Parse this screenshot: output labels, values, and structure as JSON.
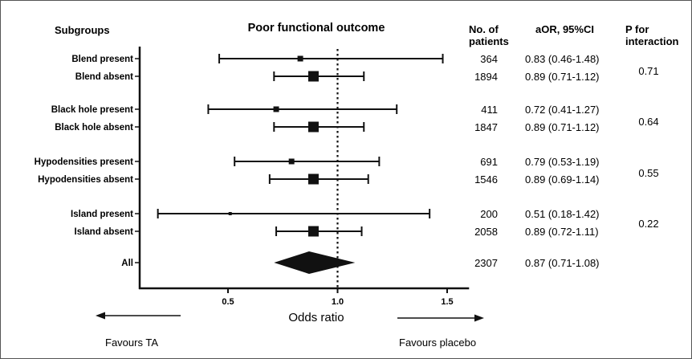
{
  "headers": {
    "subgroups": "Subgroups",
    "title": "Poor functional outcome",
    "patients": [
      "No. of",
      "patients"
    ],
    "aor": "aOR, 95%CI",
    "pint": [
      "P for",
      "interaction"
    ]
  },
  "footer": {
    "xlabel": "Odds ratio",
    "favours_left": "Favours TA",
    "favours_right": "Favours placebo"
  },
  "colors": {
    "ink": "#111111",
    "frame": "#555555"
  },
  "chart_data": {
    "type": "forest",
    "xlabel": "Odds ratio",
    "xlim": [
      0.15,
      1.6
    ],
    "ticks": [
      0.5,
      1.0,
      1.5
    ],
    "tick_labels": [
      "0.5",
      "1.0",
      "1.5"
    ],
    "reference_line": 1.0,
    "rows": [
      {
        "label": "Blend present",
        "n": "364",
        "aor_text": "0.83 (0.46-1.48)",
        "or": 0.83,
        "lo": 0.46,
        "hi": 1.48,
        "marker": "square-small"
      },
      {
        "label": "Blend absent",
        "n": "1894",
        "aor_text": "0.89 (0.71-1.12)",
        "or": 0.89,
        "lo": 0.71,
        "hi": 1.12,
        "marker": "square-large"
      },
      {
        "label": "Black hole present",
        "n": "411",
        "aor_text": "0.72 (0.41-1.27)",
        "or": 0.72,
        "lo": 0.41,
        "hi": 1.27,
        "marker": "square-small"
      },
      {
        "label": "Black hole absent",
        "n": "1847",
        "aor_text": "0.89 (0.71-1.12)",
        "or": 0.89,
        "lo": 0.71,
        "hi": 1.12,
        "marker": "square-large"
      },
      {
        "label": "Hypodensities present",
        "n": "691",
        "aor_text": "0.79 (0.53-1.19)",
        "or": 0.79,
        "lo": 0.53,
        "hi": 1.19,
        "marker": "square-small"
      },
      {
        "label": "Hypodensities absent",
        "n": "1546",
        "aor_text": "0.89 (0.69-1.14)",
        "or": 0.89,
        "lo": 0.69,
        "hi": 1.14,
        "marker": "square-large"
      },
      {
        "label": "Island present",
        "n": "200",
        "aor_text": "0.51 (0.18-1.42)",
        "or": 0.51,
        "lo": 0.18,
        "hi": 1.42,
        "marker": "square-tiny"
      },
      {
        "label": "Island absent",
        "n": "2058",
        "aor_text": "0.89 (0.72-1.11)",
        "or": 0.89,
        "lo": 0.72,
        "hi": 1.11,
        "marker": "square-large"
      },
      {
        "label": "All",
        "n": "2307",
        "aor_text": "0.87 (0.71-1.08)",
        "or": 0.87,
        "lo": 0.71,
        "hi": 1.08,
        "marker": "diamond"
      }
    ],
    "p_interaction": [
      "0.71",
      "0.64",
      "0.55",
      "0.22"
    ]
  }
}
